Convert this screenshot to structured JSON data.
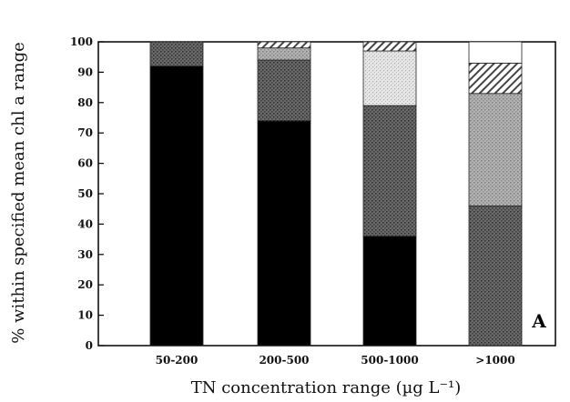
{
  "chart_data": {
    "type": "bar",
    "stacked": true,
    "categories": [
      "50-200",
      "200-500",
      "500-1000",
      ">1000"
    ],
    "series": [
      {
        "values": [
          92,
          74,
          36,
          0
        ],
        "color": "#000000",
        "pattern": "solid"
      },
      {
        "values": [
          8,
          20,
          43,
          46
        ],
        "color": "#555555",
        "pattern": "dark-stipple"
      },
      {
        "values": [
          0,
          4,
          0,
          37
        ],
        "color": "#9a9a9a",
        "pattern": "light-stipple"
      },
      {
        "values": [
          0,
          0,
          18,
          0
        ],
        "color": "#d8d8d8",
        "pattern": "faint-stipple"
      },
      {
        "values": [
          0,
          2,
          3,
          10
        ],
        "color": "#777777",
        "pattern": "diagonal-hatch"
      },
      {
        "values": [
          0,
          0,
          0,
          7
        ],
        "color": "#ffffff",
        "pattern": "empty"
      }
    ],
    "title": "",
    "xlabel": "TN concentration range (µg L⁻¹)",
    "ylabel": "% within specified mean chl a range",
    "ylim": [
      0,
      100
    ],
    "yticks": [
      "0",
      "10",
      "20",
      "30",
      "40",
      "50",
      "60",
      "70",
      "80",
      "90",
      "100"
    ],
    "panel_label": "A",
    "grid": false,
    "legend": "none"
  }
}
